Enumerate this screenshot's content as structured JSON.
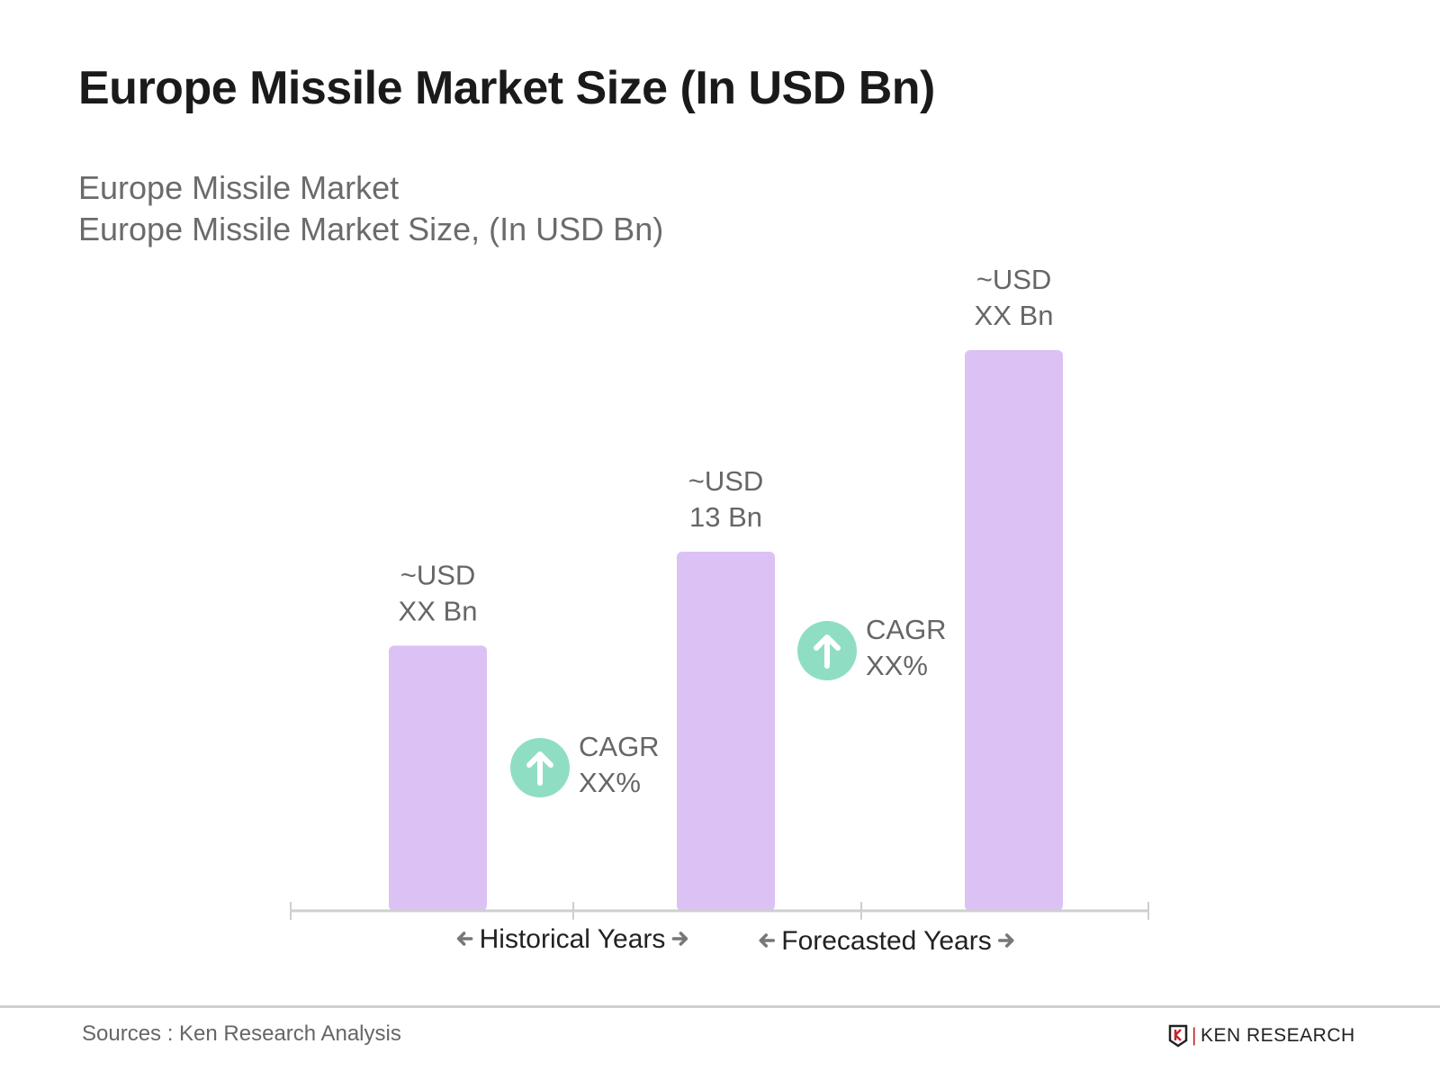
{
  "title": "Europe Missile Market Size (In USD Bn)",
  "subtitle_1": "Europe Missile Market",
  "subtitle_2": "Europe Missile Market Size, (In USD Bn)",
  "chart_data": {
    "type": "bar",
    "categories": [
      "",
      "",
      ""
    ],
    "values": [
      9.6,
      13,
      20.3
    ],
    "data_labels": [
      [
        "~USD",
        "XX Bn"
      ],
      [
        "~USD",
        "13 Bn"
      ],
      [
        "~USD",
        "XX Bn"
      ]
    ],
    "cagr_labels": [
      [
        "CAGR",
        "XX%"
      ],
      [
        "CAGR",
        "XX%"
      ]
    ],
    "period_labels": [
      "Historical Years",
      "Forecasted Years"
    ],
    "ylim": [
      0,
      20.3
    ],
    "grid": false,
    "bar_color": "#dcc1f5",
    "cagr_color": "#8fdec4"
  },
  "footer": {
    "source": "Sources : Ken Research Analysis",
    "logo": "KEN RESEARCH"
  }
}
